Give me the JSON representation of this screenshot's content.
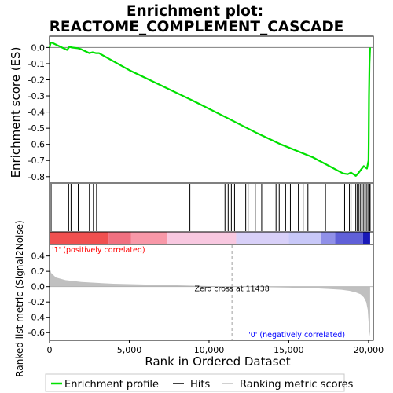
{
  "chart_data": {
    "type": "line",
    "title_line1": "Enrichment plot:",
    "title_line2": "REACTOME_COMPLEMENT_CASCADE",
    "xlabel": "Rank in Ordered Dataset",
    "ylabel_top": "Enrichment score (ES)",
    "ylabel_bottom": "Ranked list metric (Signal2Noise)",
    "xlim": [
      0,
      20300
    ],
    "x_ticks": [
      0,
      5000,
      10000,
      15000,
      20000
    ],
    "x_tick_labels": [
      "0",
      "5,000",
      "10,000",
      "15,000",
      "20,000"
    ],
    "es_ylim": [
      -0.84,
      0.07
    ],
    "es_ticks": [
      0.0,
      -0.1,
      -0.2,
      -0.3,
      -0.4,
      -0.5,
      -0.6,
      -0.7,
      -0.8
    ],
    "es_tick_labels": [
      "0.0",
      "-0.1",
      "-0.2",
      "-0.3",
      "-0.4",
      "-0.5",
      "-0.6",
      "-0.7",
      "-0.8"
    ],
    "metric_ylim": [
      -0.7,
      0.55
    ],
    "metric_ticks": [
      0.4,
      0.2,
      0.0,
      -0.2,
      -0.4,
      -0.6
    ],
    "metric_tick_labels": [
      "0.4",
      "0.2",
      "0.0",
      "-0.2",
      "-0.4",
      "-0.6"
    ],
    "enrichment_profile": {
      "name": "Enrichment profile",
      "color": "#00e000",
      "x": [
        0,
        80,
        150,
        1100,
        1250,
        1400,
        1800,
        1950,
        2500,
        2700,
        2900,
        3100,
        5000,
        7000,
        9000,
        11000,
        13000,
        14500,
        16500,
        18400,
        18700,
        18900,
        19200,
        19350,
        19500,
        19700,
        19900,
        20000,
        20010,
        20030,
        20060,
        20100
      ],
      "y": [
        0.0,
        0.03,
        0.03,
        -0.015,
        0.005,
        0.0,
        -0.005,
        -0.01,
        -0.035,
        -0.03,
        -0.035,
        -0.035,
        -0.14,
        -0.235,
        -0.33,
        -0.43,
        -0.53,
        -0.6,
        -0.68,
        -0.78,
        -0.785,
        -0.775,
        -0.795,
        -0.78,
        -0.76,
        -0.735,
        -0.75,
        -0.7,
        -0.6,
        -0.3,
        -0.1,
        0.0
      ]
    },
    "hits": {
      "name": "Hits",
      "color": "#000000",
      "positions": [
        100,
        1200,
        1350,
        1800,
        2500,
        2750,
        2950,
        8800,
        11000,
        11200,
        11400,
        11600,
        12300,
        12450,
        12900,
        13300,
        14200,
        14400,
        14800,
        15100,
        15600,
        15900,
        16200,
        17300,
        18500,
        18800,
        18900,
        19200,
        19300,
        19400,
        19500,
        19600,
        19700,
        19800,
        19900,
        20000,
        20050,
        20100
      ]
    },
    "ranking_metric": {
      "name": "Ranking metric scores",
      "color": "#c0c0c0",
      "x": [
        0,
        100,
        400,
        1000,
        2000,
        4000,
        7000,
        9000,
        10500,
        11438,
        13000,
        15000,
        16500,
        17500,
        18300,
        18800,
        19200,
        19500,
        19700,
        19850,
        19950,
        20000,
        20050,
        20100
      ],
      "y": [
        0.26,
        0.18,
        0.12,
        0.085,
        0.06,
        0.038,
        0.022,
        0.012,
        0.005,
        0.0,
        -0.006,
        -0.012,
        -0.02,
        -0.03,
        -0.04,
        -0.055,
        -0.075,
        -0.1,
        -0.14,
        -0.2,
        -0.3,
        -0.45,
        -0.58,
        -0.65
      ]
    },
    "zero_cross_label": "Zero cross at 11438",
    "zero_cross_x": 11438,
    "positive_label": "'1' (positively correlated)",
    "negative_label": "'0' (negatively correlated)",
    "positive_color": "#ff0000",
    "negative_color": "#0000ff",
    "heatbar_segments": [
      {
        "from": 0,
        "to": 3700,
        "color": "#f05050"
      },
      {
        "from": 3700,
        "to": 5100,
        "color": "#f07080"
      },
      {
        "from": 5100,
        "to": 7400,
        "color": "#f898a8"
      },
      {
        "from": 7400,
        "to": 11700,
        "color": "#f8c8e0"
      },
      {
        "from": 11700,
        "to": 15000,
        "color": "#d8d0f8"
      },
      {
        "from": 15000,
        "to": 17000,
        "color": "#c8c8f8"
      },
      {
        "from": 17000,
        "to": 17900,
        "color": "#9090e8"
      },
      {
        "from": 17900,
        "to": 19650,
        "color": "#6060d8"
      },
      {
        "from": 19650,
        "to": 20100,
        "color": "#1818b8"
      }
    ],
    "legend": [
      {
        "label": "Enrichment profile",
        "color": "#00e000",
        "style": "thick"
      },
      {
        "label": "Hits",
        "color": "#000000",
        "style": "thin"
      },
      {
        "label": "Ranking metric scores",
        "color": "#c0c0c0",
        "style": "thin"
      }
    ],
    "grid": false,
    "legend_position": "bottom"
  }
}
